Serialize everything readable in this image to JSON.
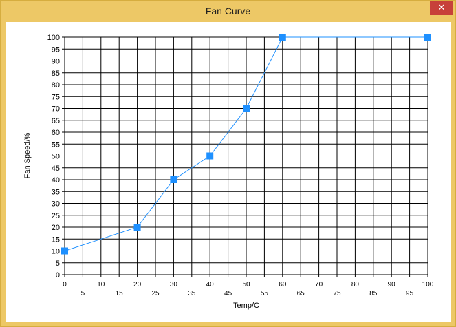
{
  "window": {
    "title": "Fan Curve",
    "close_glyph": "✕",
    "close_icon": "close-icon",
    "accent_color": "#edc866",
    "close_color": "#c7413a"
  },
  "chart_data": {
    "type": "line",
    "title": "",
    "xlabel": "Temp/C",
    "ylabel": "Fan Speed/%",
    "xlim": [
      0,
      100
    ],
    "ylim": [
      0,
      100
    ],
    "x_tick_step": 5,
    "y_tick_step": 5,
    "grid": true,
    "x": [
      0,
      20,
      30,
      40,
      50,
      60,
      100
    ],
    "series": [
      {
        "values": [
          10,
          20,
          40,
          50,
          70,
          100,
          100
        ],
        "color": "#1e90ff",
        "marker": "square"
      }
    ]
  }
}
